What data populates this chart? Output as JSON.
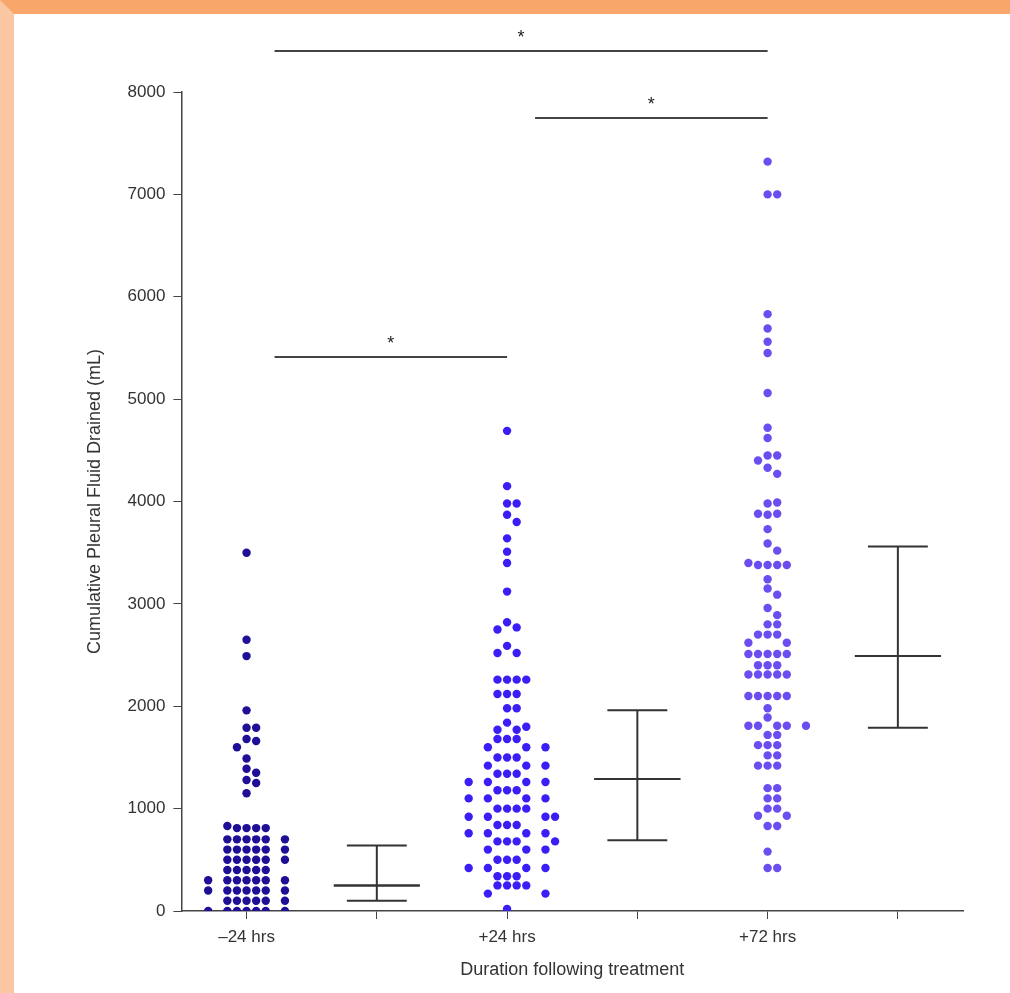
{
  "chart_data": {
    "type": "scatter",
    "xlabel": "Duration following treatment",
    "ylabel": "Cumulative Pleural Fluid Drained (mL)",
    "categories": [
      "–24 hrs",
      null,
      "+24 hrs",
      null,
      "+72 hrs",
      null
    ],
    "ylim": [
      0,
      8000
    ],
    "yticks": [
      0,
      1000,
      2000,
      3000,
      4000,
      5000,
      6000,
      7000,
      8000
    ],
    "marker": "circle",
    "annotations": [
      "*",
      "*",
      "*"
    ],
    "series": [
      {
        "color": "#1e0f96",
        "x": [
          "–24 hrs",
          "–24 hrs",
          "–24 hrs",
          "–24 hrs",
          "–24 hrs",
          "–24 hrs",
          "–24 hrs",
          "–24 hrs",
          "–24 hrs",
          "–24 hrs",
          "–24 hrs",
          "–24 hrs",
          "–24 hrs",
          "–24 hrs",
          "–24 hrs",
          "–24 hrs",
          "–24 hrs",
          "–24 hrs",
          "–24 hrs",
          "–24 hrs",
          "–24 hrs",
          "–24 hrs",
          "–24 hrs",
          "–24 hrs",
          "–24 hrs",
          "–24 hrs",
          "–24 hrs",
          "–24 hrs",
          "–24 hrs",
          "–24 hrs",
          "–24 hrs",
          "–24 hrs",
          "–24 hrs",
          "–24 hrs",
          "–24 hrs",
          "–24 hrs",
          "–24 hrs",
          "–24 hrs",
          "–24 hrs",
          "–24 hrs",
          "–24 hrs",
          "–24 hrs",
          "–24 hrs",
          "–24 hrs",
          "–24 hrs",
          "–24 hrs",
          "–24 hrs",
          "–24 hrs",
          "–24 hrs",
          "–24 hrs",
          "–24 hrs",
          "–24 hrs",
          "–24 hrs",
          "–24 hrs",
          "–24 hrs",
          "–24 hrs",
          "–24 hrs",
          "–24 hrs",
          "–24 hrs",
          "–24 hrs",
          "–24 hrs",
          "–24 hrs",
          "–24 hrs",
          "–24 hrs",
          "–24 hrs",
          "–24 hrs",
          "–24 hrs",
          "–24 hrs",
          "–24 hrs",
          "–24 hrs"
        ],
        "values": [
          3500,
          2650,
          2490,
          1960,
          1790,
          1790,
          1680,
          1660,
          1600,
          1490,
          1390,
          1350,
          1280,
          1250,
          1150,
          810,
          810,
          810,
          810,
          830,
          700,
          700,
          700,
          700,
          700,
          700,
          600,
          600,
          600,
          600,
          600,
          600,
          500,
          500,
          500,
          500,
          500,
          500,
          400,
          400,
          400,
          400,
          400,
          300,
          300,
          300,
          300,
          300,
          300,
          300,
          200,
          200,
          200,
          200,
          200,
          200,
          200,
          100,
          100,
          100,
          100,
          100,
          100,
          0,
          0,
          0,
          0,
          0,
          0,
          0
        ]
      },
      {
        "color": "#3a1ef5",
        "x": [
          "+24 hrs",
          "+24 hrs",
          "+24 hrs",
          "+24 hrs",
          "+24 hrs",
          "+24 hrs",
          "+24 hrs",
          "+24 hrs",
          "+24 hrs",
          "+24 hrs",
          "+24 hrs",
          "+24 hrs",
          "+24 hrs",
          "+24 hrs",
          "+24 hrs",
          "+24 hrs",
          "+24 hrs",
          "+24 hrs",
          "+24 hrs",
          "+24 hrs",
          "+24 hrs",
          "+24 hrs",
          "+24 hrs",
          "+24 hrs",
          "+24 hrs",
          "+24 hrs",
          "+24 hrs",
          "+24 hrs",
          "+24 hrs",
          "+24 hrs",
          "+24 hrs",
          "+24 hrs",
          "+24 hrs",
          "+24 hrs",
          "+24 hrs",
          "+24 hrs",
          "+24 hrs",
          "+24 hrs",
          "+24 hrs",
          "+24 hrs",
          "+24 hrs",
          "+24 hrs",
          "+24 hrs",
          "+24 hrs",
          "+24 hrs",
          "+24 hrs",
          "+24 hrs",
          "+24 hrs",
          "+24 hrs",
          "+24 hrs",
          "+24 hrs",
          "+24 hrs",
          "+24 hrs",
          "+24 hrs",
          "+24 hrs",
          "+24 hrs",
          "+24 hrs",
          "+24 hrs",
          "+24 hrs",
          "+24 hrs",
          "+24 hrs",
          "+24 hrs",
          "+24 hrs",
          "+24 hrs",
          "+24 hrs",
          "+24 hrs",
          "+24 hrs",
          "+24 hrs",
          "+24 hrs",
          "+24 hrs",
          "+24 hrs",
          "+24 hrs",
          "+24 hrs",
          "+24 hrs",
          "+24 hrs",
          "+24 hrs",
          "+24 hrs",
          "+24 hrs",
          "+24 hrs",
          "+24 hrs",
          "+24 hrs",
          "+24 hrs",
          "+24 hrs",
          "+24 hrs",
          "+24 hrs",
          "+24 hrs",
          "+24 hrs",
          "+24 hrs",
          "+24 hrs",
          "+24 hrs",
          "+24 hrs",
          "+24 hrs",
          "+24 hrs",
          "+24 hrs"
        ],
        "values": [
          4690,
          4150,
          3980,
          3980,
          3870,
          3800,
          3640,
          3510,
          3400,
          3120,
          2820,
          2770,
          2750,
          2590,
          2520,
          2520,
          2260,
          2260,
          2260,
          2260,
          2120,
          2120,
          2120,
          1980,
          1980,
          1840,
          1770,
          1770,
          1800,
          1680,
          1680,
          1680,
          1600,
          1600,
          1600,
          1500,
          1500,
          1500,
          1420,
          1420,
          1420,
          1340,
          1340,
          1340,
          1260,
          1260,
          1260,
          1260,
          1180,
          1180,
          1180,
          1100,
          1100,
          1100,
          1100,
          1000,
          1000,
          1000,
          1000,
          920,
          920,
          920,
          920,
          840,
          840,
          840,
          760,
          760,
          760,
          760,
          680,
          680,
          680,
          680,
          600,
          600,
          600,
          500,
          500,
          500,
          420,
          420,
          420,
          420,
          340,
          340,
          340,
          250,
          250,
          250,
          250,
          170,
          170,
          20
        ]
      },
      {
        "color": "#6b4df0",
        "x": [
          "+72 hrs",
          "+72 hrs",
          "+72 hrs",
          "+72 hrs",
          "+72 hrs",
          "+72 hrs",
          "+72 hrs",
          "+72 hrs",
          "+72 hrs",
          "+72 hrs",
          "+72 hrs",
          "+72 hrs",
          "+72 hrs",
          "+72 hrs",
          "+72 hrs",
          "+72 hrs",
          "+72 hrs",
          "+72 hrs",
          "+72 hrs",
          "+72 hrs",
          "+72 hrs",
          "+72 hrs",
          "+72 hrs",
          "+72 hrs",
          "+72 hrs",
          "+72 hrs",
          "+72 hrs",
          "+72 hrs",
          "+72 hrs",
          "+72 hrs",
          "+72 hrs",
          "+72 hrs",
          "+72 hrs",
          "+72 hrs",
          "+72 hrs",
          "+72 hrs",
          "+72 hrs",
          "+72 hrs",
          "+72 hrs",
          "+72 hrs",
          "+72 hrs",
          "+72 hrs",
          "+72 hrs",
          "+72 hrs",
          "+72 hrs",
          "+72 hrs",
          "+72 hrs",
          "+72 hrs",
          "+72 hrs",
          "+72 hrs",
          "+72 hrs",
          "+72 hrs",
          "+72 hrs",
          "+72 hrs",
          "+72 hrs",
          "+72 hrs",
          "+72 hrs",
          "+72 hrs",
          "+72 hrs",
          "+72 hrs",
          "+72 hrs",
          "+72 hrs",
          "+72 hrs",
          "+72 hrs",
          "+72 hrs",
          "+72 hrs",
          "+72 hrs",
          "+72 hrs",
          "+72 hrs",
          "+72 hrs",
          "+72 hrs",
          "+72 hrs",
          "+72 hrs",
          "+72 hrs",
          "+72 hrs",
          "+72 hrs",
          "+72 hrs",
          "+72 hrs",
          "+72 hrs",
          "+72 hrs",
          "+72 hrs",
          "+72 hrs",
          "+72 hrs",
          "+72 hrs",
          "+72 hrs",
          "+72 hrs",
          "+72 hrs",
          "+72 hrs"
        ],
        "values": [
          7320,
          7000,
          7000,
          5830,
          5690,
          5560,
          5450,
          5060,
          4720,
          4620,
          4450,
          4450,
          4400,
          4330,
          4270,
          3980,
          3990,
          3870,
          3880,
          3880,
          3730,
          3590,
          3520,
          3380,
          3380,
          3380,
          3380,
          3400,
          3240,
          3150,
          3090,
          2960,
          2890,
          2800,
          2800,
          2700,
          2700,
          2700,
          2620,
          2620,
          2510,
          2510,
          2510,
          2510,
          2510,
          2400,
          2400,
          2400,
          2310,
          2310,
          2310,
          2310,
          2310,
          2100,
          2100,
          2100,
          2100,
          2100,
          1980,
          1890,
          1810,
          1810,
          1810,
          1810,
          1810,
          1720,
          1720,
          1620,
          1620,
          1620,
          1520,
          1520,
          1420,
          1420,
          1420,
          1200,
          1200,
          1100,
          1100,
          1000,
          1000,
          930,
          930,
          830,
          830,
          580,
          420,
          420
        ]
      },
      {
        "type": "box",
        "color": "#333333",
        "boxes": [
          null,
          {
            "low": 100,
            "q1": 250,
            "median": 250,
            "q3": 250,
            "high": 640
          },
          null,
          {
            "low": 690,
            "q1": 1290,
            "median": 1290,
            "q3": 1290,
            "high": 1960
          },
          null,
          {
            "low": 1790,
            "q1": 2490,
            "median": 2490,
            "q3": 2490,
            "high": 3560
          }
        ]
      }
    ]
  }
}
